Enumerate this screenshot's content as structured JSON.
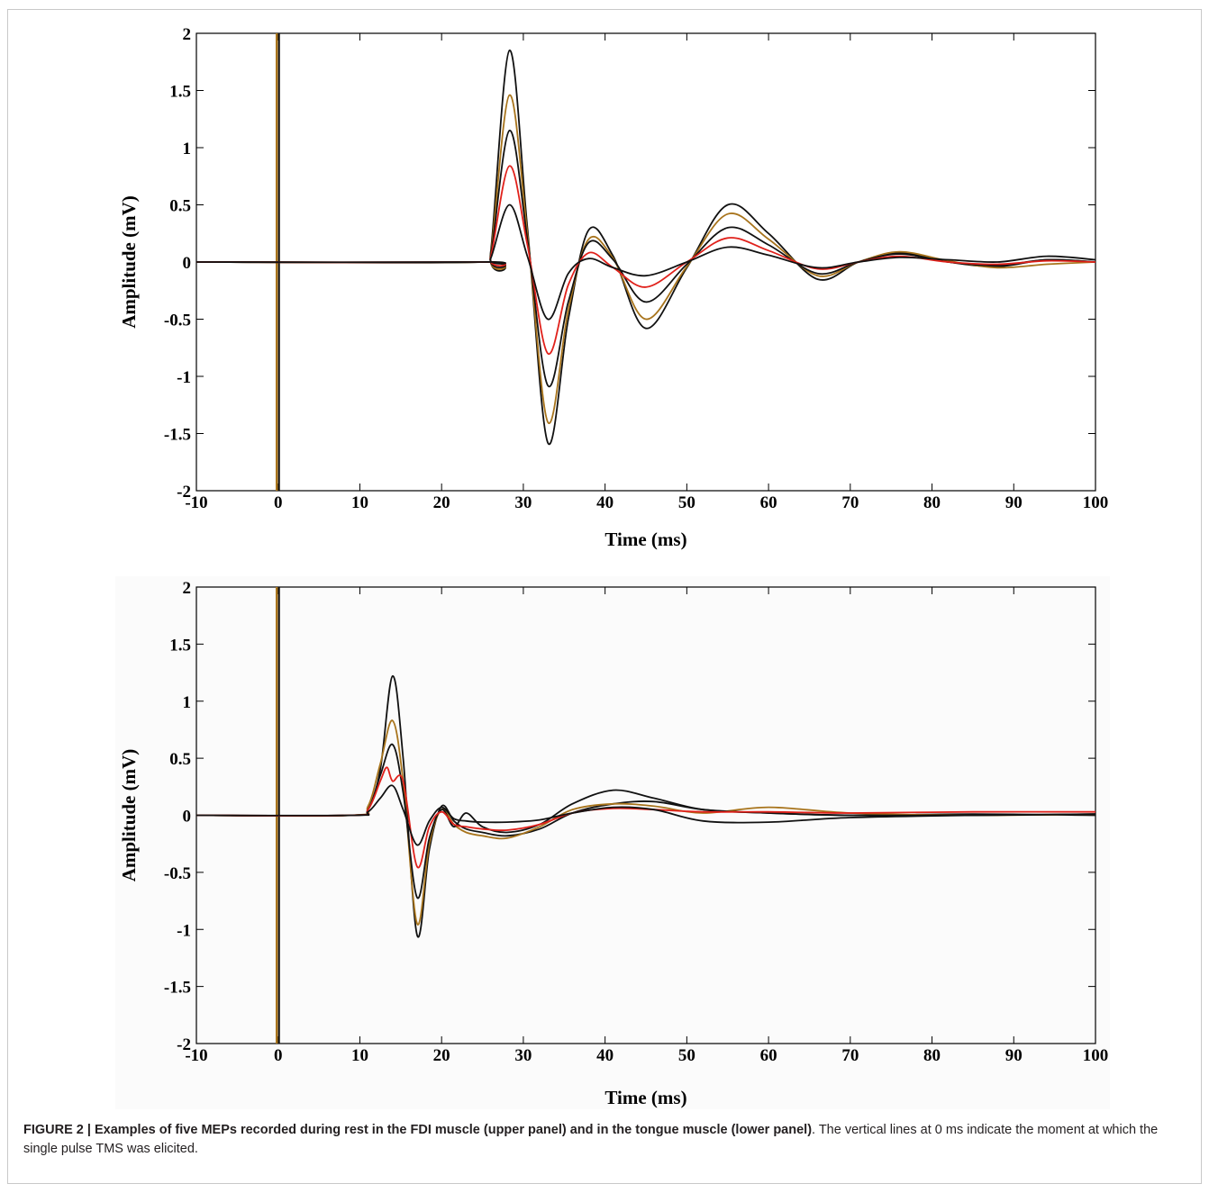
{
  "colors": {
    "black": "#111111",
    "brown": "#a8741c",
    "red": "#e0211b"
  },
  "chart_data": [
    {
      "type": "line",
      "panel": "upper",
      "xlabel": "Time (ms)",
      "ylabel": "Amplitude (mV)",
      "xlim": [
        -10,
        100
      ],
      "ylim": [
        -2,
        2
      ],
      "xticks": [
        "-10",
        "0",
        "10",
        "20",
        "30",
        "40",
        "50",
        "60",
        "70",
        "80",
        "90",
        "100"
      ],
      "yticks": [
        "2",
        "1.5",
        "1",
        "0.5",
        "0",
        "-0.5",
        "-1",
        "-1.5",
        "-2"
      ],
      "stimulus_line_x": 0,
      "series": [
        {
          "color": "black",
          "x": [
            -10,
            25,
            26,
            28.3,
            30.5,
            33,
            35.5,
            38,
            41,
            45,
            50,
            55,
            60,
            66,
            71,
            76,
            82,
            88,
            94,
            100
          ],
          "y": [
            0,
            0,
            0.08,
            1.85,
            0.3,
            -1.58,
            -0.5,
            0.28,
            0.05,
            -0.58,
            -0.05,
            0.5,
            0.25,
            -0.15,
            0,
            0.08,
            0,
            -0.04,
            0.02,
            0
          ]
        },
        {
          "color": "brown",
          "x": [
            -10,
            25,
            26,
            28.3,
            30.5,
            33,
            35.5,
            38,
            41,
            45,
            50,
            55,
            60,
            66,
            71,
            76,
            82,
            88,
            94,
            100
          ],
          "y": [
            0,
            0,
            0.06,
            1.46,
            0.25,
            -1.4,
            -0.42,
            0.2,
            0.03,
            -0.5,
            -0.04,
            0.42,
            0.2,
            -0.12,
            0,
            0.09,
            0.01,
            -0.05,
            -0.02,
            0
          ]
        },
        {
          "color": "black",
          "x": [
            -10,
            25,
            26,
            28.3,
            30.5,
            33,
            35.5,
            38,
            41,
            45,
            50,
            55,
            60,
            66,
            71,
            76,
            82,
            88,
            94,
            100
          ],
          "y": [
            0,
            0,
            0.05,
            1.15,
            0.2,
            -1.08,
            -0.35,
            0.17,
            0.02,
            -0.35,
            -0.02,
            0.3,
            0.15,
            -0.1,
            0,
            0.07,
            0,
            -0.03,
            0.02,
            0
          ]
        },
        {
          "color": "red",
          "x": [
            -10,
            25,
            26,
            28.3,
            30.5,
            33,
            35.5,
            38,
            41,
            45,
            50,
            55,
            60,
            66,
            71,
            76,
            82,
            88,
            94,
            100
          ],
          "y": [
            0,
            0,
            0.04,
            0.84,
            0.15,
            -0.8,
            -0.2,
            0.08,
            -0.05,
            -0.22,
            0,
            0.21,
            0.1,
            -0.06,
            0,
            0.05,
            0,
            -0.02,
            0.01,
            0
          ]
        },
        {
          "color": "black",
          "x": [
            -10,
            25,
            26,
            28.3,
            30.5,
            33,
            35.5,
            38,
            41,
            45,
            50,
            55,
            60,
            66,
            71,
            76,
            82,
            88,
            94,
            100
          ],
          "y": [
            0,
            0,
            0.03,
            0.5,
            0.05,
            -0.5,
            -0.1,
            0.03,
            -0.05,
            -0.12,
            0,
            0.13,
            0.06,
            -0.05,
            0,
            0.04,
            0.02,
            0,
            0.05,
            0.02
          ]
        }
      ]
    },
    {
      "type": "line",
      "panel": "lower",
      "xlabel": "Time (ms)",
      "ylabel": "Amplitude (mV)",
      "xlim": [
        -10,
        100
      ],
      "ylim": [
        -2,
        2
      ],
      "xticks": [
        "-10",
        "0",
        "10",
        "20",
        "30",
        "40",
        "50",
        "60",
        "70",
        "80",
        "90",
        "100"
      ],
      "yticks": [
        "2",
        "1.5",
        "1",
        "0.5",
        "0",
        "-0.5",
        "-1",
        "-1.5",
        "-2"
      ],
      "stimulus_line_x": 0,
      "series": [
        {
          "color": "black",
          "x": [
            -10,
            9,
            11,
            12.5,
            14,
            15.3,
            17,
            18.5,
            20,
            21.5,
            23,
            25,
            28,
            32,
            36,
            41,
            46,
            52,
            60,
            70,
            85,
            100
          ],
          "y": [
            0,
            0,
            0.05,
            0.4,
            1.22,
            0.5,
            -1.05,
            -0.3,
            0.08,
            -0.05,
            -0.12,
            -0.15,
            -0.18,
            -0.12,
            0.02,
            0.1,
            0.12,
            0.05,
            0.02,
            0,
            0.01,
            0
          ]
        },
        {
          "color": "brown",
          "x": [
            -10,
            9,
            11,
            12.5,
            14,
            15.3,
            17,
            18.5,
            20,
            21.5,
            23,
            25,
            28,
            32,
            36,
            41,
            46,
            52,
            60,
            70,
            85,
            100
          ],
          "y": [
            0,
            0,
            0.08,
            0.45,
            0.83,
            0.3,
            -0.95,
            -0.25,
            0.05,
            -0.08,
            -0.15,
            -0.18,
            -0.2,
            -0.1,
            0.05,
            0.1,
            0.08,
            0.02,
            0.07,
            0.02,
            0,
            0.01
          ]
        },
        {
          "color": "black",
          "x": [
            -10,
            9,
            11,
            12.5,
            14,
            15.3,
            17,
            18.5,
            20,
            21.5,
            23,
            25,
            28,
            32,
            36,
            41,
            46,
            52,
            60,
            70,
            85,
            100
          ],
          "y": [
            0,
            0,
            0.05,
            0.35,
            0.62,
            0.2,
            -0.72,
            -0.2,
            0.05,
            -0.1,
            0.02,
            -0.1,
            -0.15,
            -0.08,
            0.1,
            0.22,
            0.15,
            0.05,
            0.02,
            0,
            0,
            0.01
          ]
        },
        {
          "color": "red",
          "x": [
            -10,
            9,
            11,
            12.5,
            13.3,
            14,
            15.3,
            17,
            18.5,
            20,
            21.5,
            23,
            25,
            28,
            32,
            36,
            41,
            46,
            52,
            60,
            70,
            85,
            100
          ],
          "y": [
            0,
            0,
            0.05,
            0.3,
            0.42,
            0.3,
            0.3,
            -0.45,
            -0.1,
            0.03,
            -0.08,
            -0.1,
            -0.12,
            -0.13,
            -0.08,
            0.02,
            0.06,
            0.05,
            0.03,
            0.03,
            0.02,
            0.03,
            0.03
          ]
        },
        {
          "color": "black",
          "x": [
            -10,
            9,
            11,
            12.5,
            14,
            15.3,
            17,
            18.5,
            20,
            21.5,
            23,
            25,
            28,
            32,
            36,
            41,
            46,
            52,
            60,
            70,
            85,
            100
          ],
          "y": [
            0,
            0,
            0.03,
            0.15,
            0.26,
            0.05,
            -0.26,
            -0.05,
            0.07,
            -0.03,
            -0.05,
            -0.06,
            -0.06,
            -0.04,
            0.02,
            0.07,
            0.05,
            -0.05,
            -0.06,
            -0.02,
            0,
            0.01
          ]
        }
      ]
    }
  ],
  "caption": {
    "bold_text": "FIGURE 2 | Examples of five MEPs recorded during rest in the FDI muscle (upper panel) and in the tongue muscle (lower panel)",
    "rest_text": ". The vertical lines at 0 ms indicate the moment at which the single pulse TMS was elicited."
  }
}
